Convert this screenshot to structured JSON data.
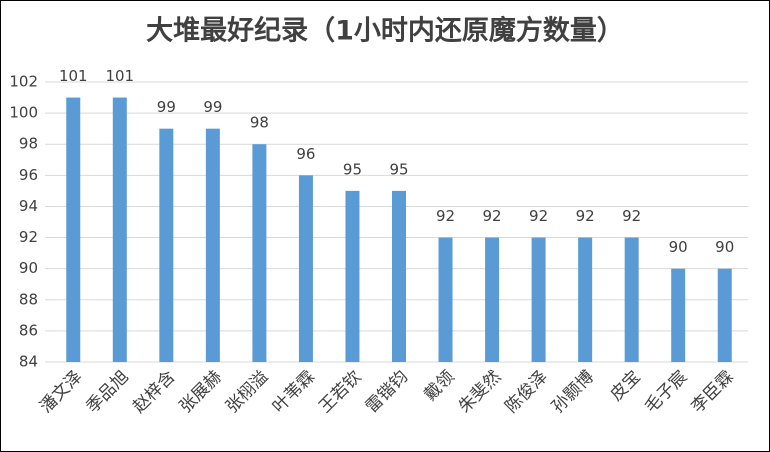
{
  "chart_data": {
    "type": "bar",
    "title": "大堆最好纪录（1小时内还原魔方数量）",
    "categories": [
      "潘文泽",
      "季品旭",
      "赵梓含",
      "张展赫",
      "张栩溢",
      "叶苇霖",
      "王若钦",
      "雷锴钧",
      "戴领",
      "朱斐然",
      "陈俊泽",
      "孙颢博",
      "皮宝",
      "毛子宸",
      "李臣霖"
    ],
    "values": [
      101,
      101,
      99,
      99,
      98,
      96,
      95,
      95,
      92,
      92,
      92,
      92,
      92,
      90,
      90
    ],
    "color": "#5b9bd5",
    "ylim": [
      84,
      102
    ],
    "yticks": [
      84,
      86,
      88,
      90,
      92,
      94,
      96,
      98,
      100,
      102
    ],
    "grid": true
  }
}
